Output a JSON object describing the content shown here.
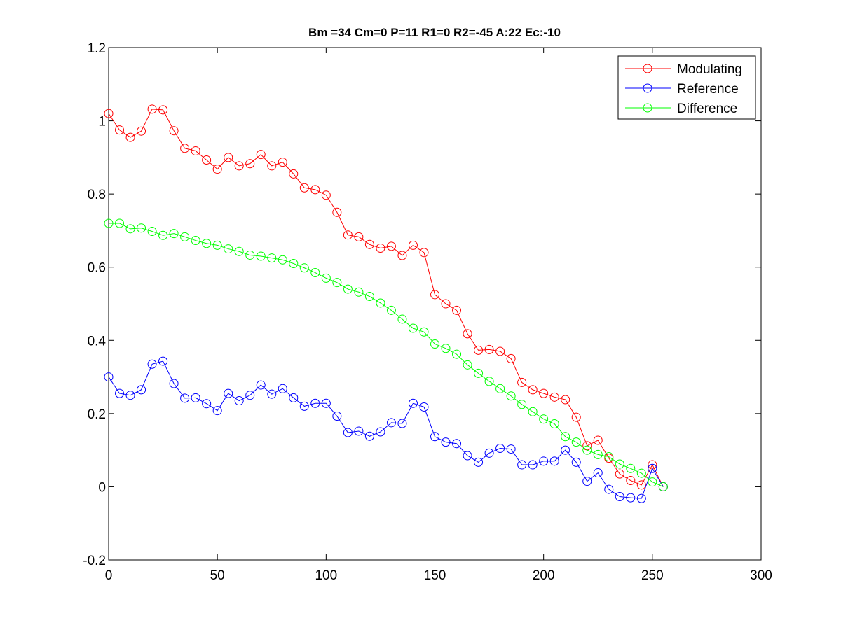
{
  "chart_data": {
    "type": "line",
    "title": "Bm =34  Cm=0  P=11  R1=0  R2=-45  A:22  Ec:-10",
    "xlabel": "",
    "ylabel": "",
    "xlim": [
      0,
      300
    ],
    "ylim": [
      -0.2,
      1.2
    ],
    "x_ticks": [
      "0",
      "50",
      "100",
      "150",
      "200",
      "250",
      "300"
    ],
    "y_ticks": [
      "-0.2",
      "0",
      "0.2",
      "0.4",
      "0.6",
      "0.8",
      "1",
      "1.2"
    ],
    "x_tick_values": [
      0,
      50,
      100,
      150,
      200,
      250,
      300
    ],
    "y_tick_values": [
      -0.2,
      0,
      0.2,
      0.4,
      0.6,
      0.8,
      1,
      1.2
    ],
    "grid": false,
    "legend_position": "top-right",
    "marker": "circle",
    "x": [
      0,
      5,
      10,
      15,
      20,
      25,
      30,
      35,
      40,
      45,
      50,
      55,
      60,
      65,
      70,
      75,
      80,
      85,
      90,
      95,
      100,
      105,
      110,
      115,
      120,
      125,
      130,
      135,
      140,
      145,
      150,
      155,
      160,
      165,
      170,
      175,
      180,
      185,
      190,
      195,
      200,
      205,
      210,
      215,
      220,
      225,
      230,
      235,
      240,
      245,
      250,
      255
    ],
    "series": [
      {
        "name": "Modulating",
        "color": "#ff0000",
        "values": [
          1.02,
          0.975,
          0.955,
          0.972,
          1.032,
          1.03,
          0.973,
          0.925,
          0.918,
          0.893,
          0.868,
          0.9,
          0.877,
          0.883,
          0.908,
          0.877,
          0.887,
          0.855,
          0.817,
          0.812,
          0.797,
          0.75,
          0.688,
          0.683,
          0.662,
          0.652,
          0.657,
          0.632,
          0.66,
          0.64,
          0.525,
          0.5,
          0.482,
          0.418,
          0.373,
          0.375,
          0.37,
          0.35,
          0.285,
          0.265,
          0.255,
          0.245,
          0.238,
          0.19,
          0.112,
          0.127,
          0.078,
          0.035,
          0.017,
          0.005,
          0.06,
          0.0
        ]
      },
      {
        "name": "Reference",
        "color": "#0000ff",
        "values": [
          0.3,
          0.255,
          0.25,
          0.265,
          0.335,
          0.343,
          0.282,
          0.242,
          0.243,
          0.227,
          0.208,
          0.255,
          0.235,
          0.25,
          0.278,
          0.253,
          0.268,
          0.243,
          0.22,
          0.228,
          0.228,
          0.193,
          0.148,
          0.152,
          0.138,
          0.15,
          0.175,
          0.173,
          0.228,
          0.218,
          0.137,
          0.122,
          0.118,
          0.085,
          0.067,
          0.092,
          0.105,
          0.103,
          0.06,
          0.06,
          0.07,
          0.07,
          0.1,
          0.067,
          0.015,
          0.038,
          -0.007,
          -0.027,
          -0.03,
          -0.032,
          0.05,
          0.0
        ]
      },
      {
        "name": "Difference",
        "color": "#00ff00",
        "values": [
          0.72,
          0.72,
          0.705,
          0.707,
          0.698,
          0.687,
          0.692,
          0.683,
          0.673,
          0.665,
          0.66,
          0.65,
          0.643,
          0.633,
          0.63,
          0.625,
          0.62,
          0.61,
          0.598,
          0.585,
          0.57,
          0.558,
          0.54,
          0.532,
          0.52,
          0.502,
          0.482,
          0.458,
          0.433,
          0.423,
          0.39,
          0.378,
          0.362,
          0.333,
          0.31,
          0.288,
          0.268,
          0.248,
          0.225,
          0.205,
          0.185,
          0.172,
          0.137,
          0.122,
          0.1,
          0.088,
          0.082,
          0.062,
          0.05,
          0.037,
          0.013,
          0.0
        ]
      }
    ]
  }
}
